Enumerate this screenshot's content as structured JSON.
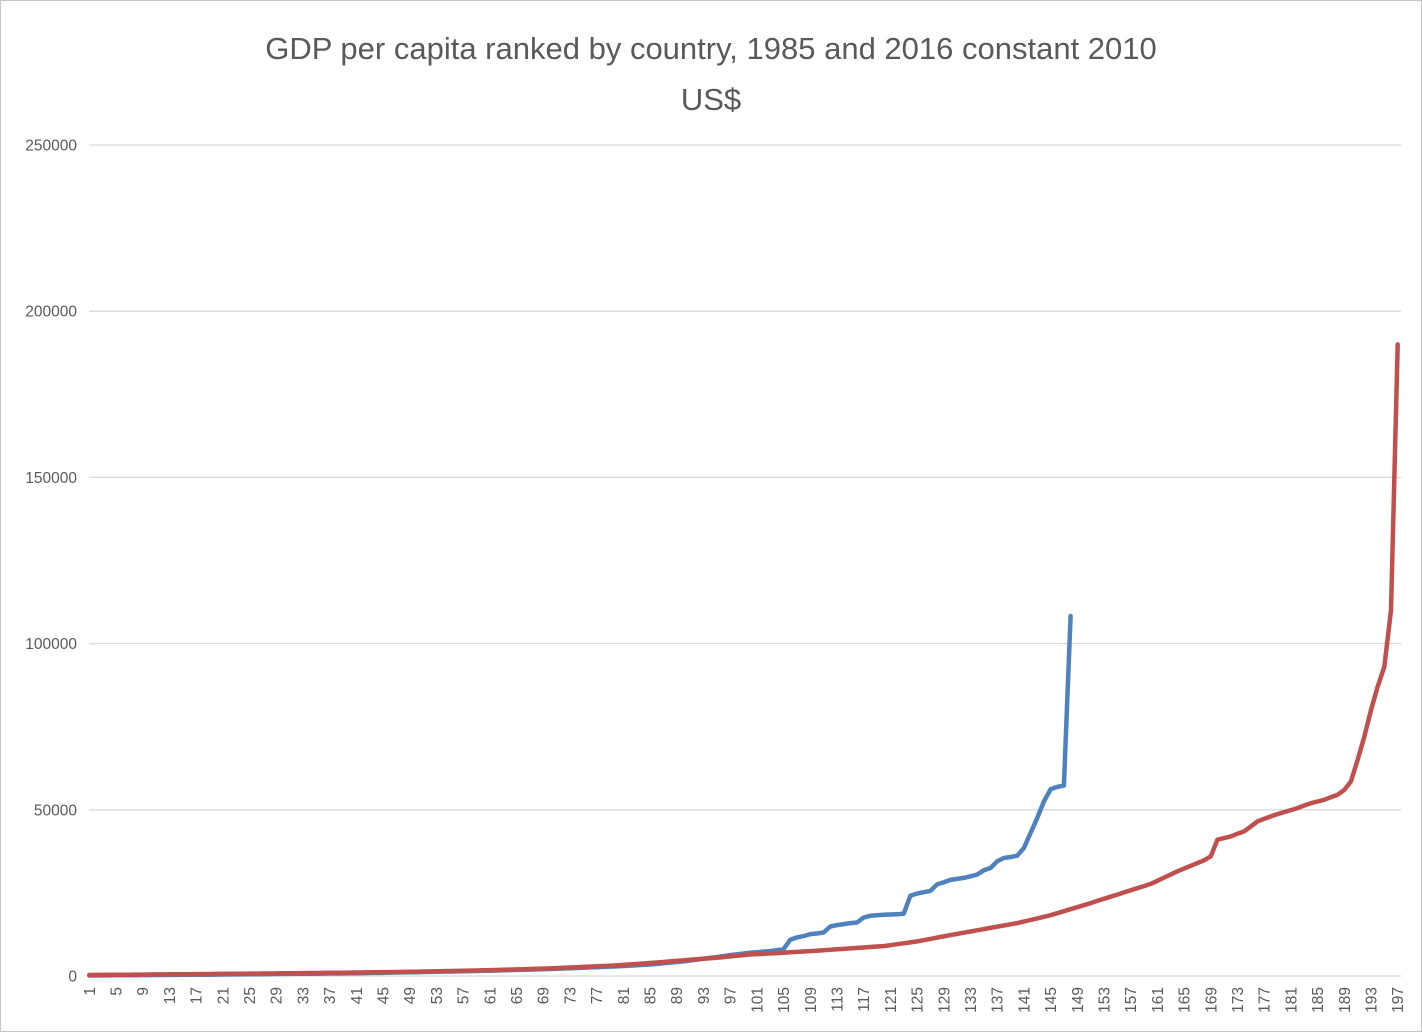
{
  "chart_data": {
    "type": "line",
    "title": "GDP per capita ranked by country, 1985 and 2016 constant 2010 US$",
    "title_lines": [
      "GDP per capita ranked by country, 1985 and 2016 constant 2010",
      "US$"
    ],
    "xlabel": "",
    "ylabel": "",
    "ylim": [
      0,
      250000
    ],
    "y_ticks": [
      0,
      50000,
      100000,
      150000,
      200000,
      250000
    ],
    "x_tick_labels": [
      1,
      5,
      9,
      13,
      17,
      21,
      25,
      29,
      33,
      37,
      41,
      45,
      49,
      53,
      57,
      61,
      65,
      69,
      73,
      77,
      81,
      85,
      89,
      93,
      97,
      101,
      105,
      109,
      113,
      117,
      121,
      125,
      129,
      133,
      137,
      141,
      145,
      149,
      153,
      157,
      161,
      165,
      169,
      173,
      177,
      181,
      185,
      189,
      193,
      197
    ],
    "x_categories_total": 197,
    "grid": "horizontal",
    "legend_position": "none",
    "colors": {
      "series_1985": "#4f81bd",
      "series_2016": "#c0504d",
      "gridline": "#d9d9d9",
      "tick_label": "#595959",
      "title": "#595959"
    },
    "series": [
      {
        "name": "1985",
        "color": "#4f81bd",
        "values": [
          150,
          164,
          178,
          193,
          207,
          221,
          235,
          249,
          264,
          278,
          292,
          306,
          320,
          335,
          349,
          363,
          377,
          391,
          406,
          420,
          439,
          458,
          477,
          496,
          515,
          534,
          553,
          572,
          591,
          610,
          629,
          648,
          667,
          686,
          705,
          724,
          743,
          762,
          781,
          800,
          835,
          870,
          905,
          940,
          975,
          1010,
          1045,
          1080,
          1115,
          1150,
          1190,
          1230,
          1270,
          1310,
          1350,
          1390,
          1430,
          1470,
          1510,
          1550,
          1605,
          1660,
          1715,
          1770,
          1825,
          1880,
          1935,
          1990,
          2045,
          2100,
          2180,
          2260,
          2340,
          2420,
          2500,
          2580,
          2660,
          2740,
          2820,
          2900,
          3010,
          3120,
          3230,
          3340,
          3450,
          3640,
          3830,
          4020,
          4210,
          4400,
          4670,
          4930,
          5200,
          5450,
          5700,
          6000,
          6300,
          6530,
          6770,
          7000,
          7170,
          7330,
          7500,
          7800,
          8100,
          10900,
          11600,
          12000,
          12600,
          12800,
          13100,
          14900,
          15300,
          15600,
          15900,
          16100,
          17600,
          18100,
          18300,
          18400,
          18500,
          18600,
          18700,
          24200,
          24800,
          25200,
          25600,
          27600,
          28200,
          28900,
          29200,
          29500,
          30000,
          30500,
          31800,
          32500,
          34500,
          35500,
          35800,
          36200,
          38500,
          43000,
          47500,
          52500,
          56200,
          56900,
          57300,
          108300
        ]
      },
      {
        "name": "2016",
        "color": "#c0504d",
        "values": [
          300,
          317,
          333,
          350,
          367,
          383,
          400,
          417,
          433,
          450,
          467,
          484,
          501,
          518,
          535,
          552,
          569,
          586,
          603,
          620,
          638,
          656,
          674,
          692,
          710,
          728,
          746,
          764,
          782,
          800,
          822,
          844,
          866,
          888,
          910,
          932,
          954,
          976,
          998,
          1020,
          1048,
          1076,
          1104,
          1132,
          1160,
          1188,
          1216,
          1244,
          1272,
          1300,
          1340,
          1380,
          1420,
          1460,
          1500,
          1540,
          1580,
          1620,
          1660,
          1700,
          1760,
          1820,
          1880,
          1940,
          2000,
          2060,
          2120,
          2180,
          2240,
          2300,
          2390,
          2480,
          2570,
          2660,
          2750,
          2840,
          2930,
          3020,
          3110,
          3200,
          3340,
          3480,
          3620,
          3760,
          3900,
          4060,
          4220,
          4380,
          4540,
          4700,
          4860,
          5020,
          5180,
          5340,
          5500,
          5700,
          5900,
          6100,
          6300,
          6500,
          6600,
          6700,
          6800,
          6900,
          7000,
          7120,
          7240,
          7360,
          7480,
          7600,
          7740,
          7880,
          8020,
          8160,
          8300,
          8440,
          8580,
          8720,
          8860,
          9000,
          9280,
          9560,
          9840,
          10120,
          10400,
          10780,
          11160,
          11540,
          11920,
          12300,
          12660,
          13020,
          13380,
          13740,
          14100,
          14460,
          14820,
          15180,
          15540,
          15900,
          16380,
          16860,
          17340,
          17820,
          18300,
          18900,
          19500,
          20100,
          20700,
          21300,
          21940,
          22580,
          23220,
          23860,
          24500,
          25140,
          25780,
          26420,
          27060,
          27700,
          28650,
          29600,
          30550,
          31500,
          32325,
          33150,
          33975,
          34800,
          36000,
          41000,
          41500,
          42000,
          42800,
          43500,
          45000,
          46500,
          47300,
          48000,
          48700,
          49300,
          49900,
          50500,
          51300,
          52000,
          52500,
          53000,
          53800,
          54500,
          56000,
          58500,
          65000,
          72000,
          80000,
          87000,
          93000,
          110000,
          190000
        ]
      }
    ]
  }
}
